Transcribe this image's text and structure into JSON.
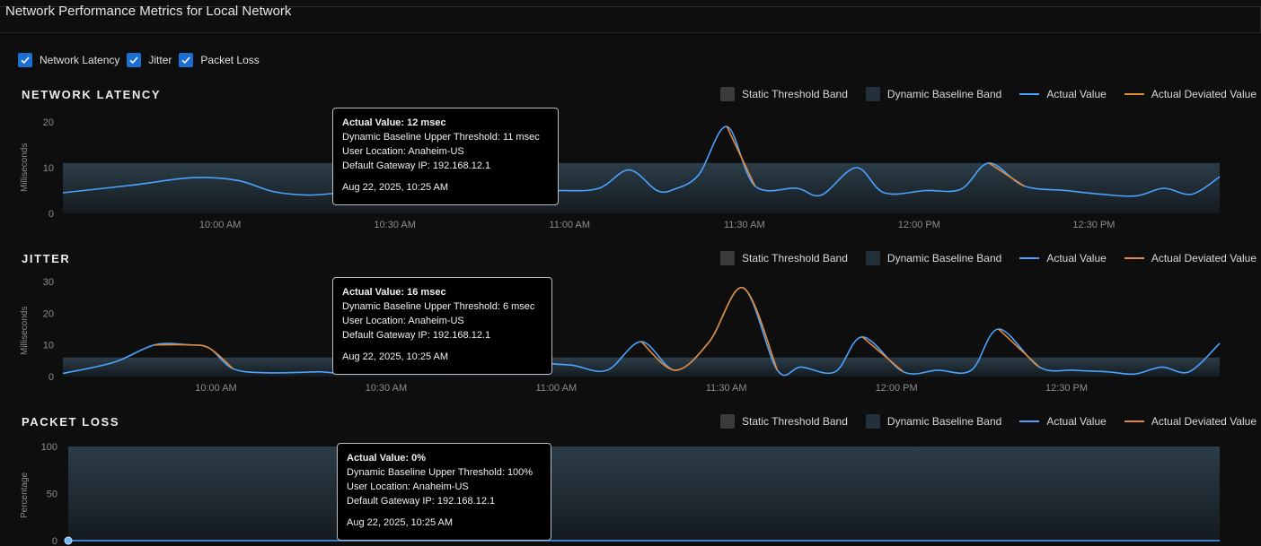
{
  "page": {
    "title": "Network Performance Metrics for Local Network"
  },
  "toggles": [
    {
      "label": "Network Latency",
      "checked": true
    },
    {
      "label": "Jitter",
      "checked": true
    },
    {
      "label": "Packet Loss",
      "checked": true
    }
  ],
  "legend": {
    "static": "Static Threshold Band",
    "dynamic": "Dynamic Baseline Band",
    "actual": "Actual Value",
    "deviated": "Actual Deviated Value"
  },
  "colors": {
    "actual": "#4aa3ff",
    "deviated": "#e08a3a",
    "static_band": "#3b3b3d",
    "dynamic_band": "#22303a"
  },
  "chart_data": [
    {
      "type": "line",
      "title": "NETWORK LATENCY",
      "ylabel": "Milliseconds",
      "ylim": [
        0,
        20
      ],
      "yticks": [
        0,
        10,
        20
      ],
      "x_ticks": [
        "10:00 AM",
        "10:30 AM",
        "11:00 AM",
        "11:30 AM",
        "12:00 PM",
        "12:30 PM"
      ],
      "baseline_upper": 11,
      "series": [
        {
          "values": [
            [
              9.55,
              4.5
            ],
            [
              9.75,
              6.2
            ],
            [
              9.92,
              7.8
            ],
            [
              10.05,
              7.2
            ],
            [
              10.15,
              4.8
            ],
            [
              10.25,
              4
            ],
            [
              10.35,
              4.5
            ],
            [
              10.45,
              4.6
            ],
            [
              10.52,
              12
            ],
            [
              10.6,
              6
            ],
            [
              10.7,
              4.5
            ],
            [
              10.8,
              4.8
            ],
            [
              10.95,
              5
            ],
            [
              11.08,
              5.4
            ],
            [
              11.17,
              9.5
            ],
            [
              11.25,
              5
            ],
            [
              11.3,
              5.3
            ],
            [
              11.37,
              8.5
            ],
            [
              11.45,
              19
            ],
            [
              11.53,
              6
            ],
            [
              11.65,
              5.5
            ],
            [
              11.72,
              4
            ],
            [
              11.82,
              10
            ],
            [
              11.9,
              4.5
            ],
            [
              12.02,
              5
            ],
            [
              12.12,
              5.3
            ],
            [
              12.2,
              11
            ],
            [
              12.3,
              6
            ],
            [
              12.42,
              5
            ],
            [
              12.52,
              4.2
            ],
            [
              12.62,
              3.8
            ],
            [
              12.7,
              5.5
            ],
            [
              12.78,
              4.2
            ],
            [
              12.86,
              8
            ]
          ]
        }
      ],
      "deviated": [
        {
          "values": [
            [
              11.45,
              19
            ],
            [
              11.53,
              6
            ]
          ]
        },
        {
          "values": [
            [
              12.2,
              11
            ],
            [
              12.3,
              6
            ]
          ]
        }
      ],
      "tooltip": {
        "actual": "Actual Value: 12 msec",
        "threshold": "Dynamic Baseline Upper Threshold: 11 msec",
        "location": "User Location: Anaheim-US",
        "gateway": "Default Gateway IP: 192.168.12.1",
        "time": "Aug 22, 2025, 10:25 AM"
      }
    },
    {
      "type": "line",
      "title": "JITTER",
      "ylabel": "Milliseconds",
      "ylim": [
        0,
        30
      ],
      "yticks": [
        0,
        10,
        20,
        30
      ],
      "x_ticks": [
        "10:00 AM",
        "10:30 AM",
        "11:00 AM",
        "11:30 AM",
        "12:00 PM",
        "12:30 PM"
      ],
      "baseline_upper": 6,
      "series": [
        {
          "values": [
            [
              9.55,
              1
            ],
            [
              9.7,
              4.5
            ],
            [
              9.82,
              10
            ],
            [
              9.92,
              10
            ],
            [
              9.98,
              9
            ],
            [
              10.05,
              2.5
            ],
            [
              10.15,
              1.2
            ],
            [
              10.3,
              1.5
            ],
            [
              10.42,
              2
            ],
            [
              10.52,
              16
            ],
            [
              10.6,
              10
            ],
            [
              10.72,
              13
            ],
            [
              10.82,
              12
            ],
            [
              10.95,
              5
            ],
            [
              11.05,
              3.5
            ],
            [
              11.15,
              2
            ],
            [
              11.25,
              11
            ],
            [
              11.35,
              2
            ],
            [
              11.45,
              11
            ],
            [
              11.55,
              28
            ],
            [
              11.65,
              2
            ],
            [
              11.72,
              3
            ],
            [
              11.82,
              1.5
            ],
            [
              11.9,
              12.5
            ],
            [
              12.02,
              1.5
            ],
            [
              12.12,
              2
            ],
            [
              12.22,
              2
            ],
            [
              12.3,
              15
            ],
            [
              12.42,
              3
            ],
            [
              12.52,
              2
            ],
            [
              12.62,
              1.5
            ],
            [
              12.7,
              0.8
            ],
            [
              12.78,
              3
            ],
            [
              12.86,
              1.5
            ],
            [
              12.95,
              10.5
            ]
          ]
        }
      ],
      "deviated": [
        {
          "values": [
            [
              9.82,
              10
            ],
            [
              9.92,
              10
            ],
            [
              9.98,
              9
            ],
            [
              10.05,
              2.5
            ]
          ]
        },
        {
          "values": [
            [
              11.25,
              11
            ],
            [
              11.35,
              2
            ],
            [
              11.45,
              11
            ],
            [
              11.55,
              28
            ],
            [
              11.65,
              2
            ]
          ]
        },
        {
          "values": [
            [
              11.9,
              12.5
            ],
            [
              12.02,
              1.5
            ]
          ]
        },
        {
          "values": [
            [
              12.3,
              15
            ],
            [
              12.42,
              3
            ]
          ]
        }
      ],
      "tooltip": {
        "actual": "Actual Value: 16 msec",
        "threshold": "Dynamic Baseline Upper Threshold: 6 msec",
        "location": "User Location: Anaheim-US",
        "gateway": "Default Gateway IP: 192.168.12.1",
        "time": "Aug 22, 2025, 10:25 AM"
      }
    },
    {
      "type": "line",
      "title": "PACKET LOSS",
      "ylabel": "Percentage",
      "ylim": [
        0,
        100
      ],
      "yticks": [
        0,
        50,
        100
      ],
      "baseline_upper": 100,
      "series": [
        {
          "values": [
            [
              9.55,
              0
            ],
            [
              12.95,
              0
            ]
          ]
        }
      ],
      "deviated": [],
      "tooltip": {
        "actual": "Actual Value: 0%",
        "threshold": "Dynamic Baseline Upper Threshold: 100%",
        "location": "User Location: Anaheim-US",
        "gateway": "Default Gateway IP: 192.168.12.1",
        "time": "Aug 22, 2025, 10:25 AM"
      }
    }
  ]
}
